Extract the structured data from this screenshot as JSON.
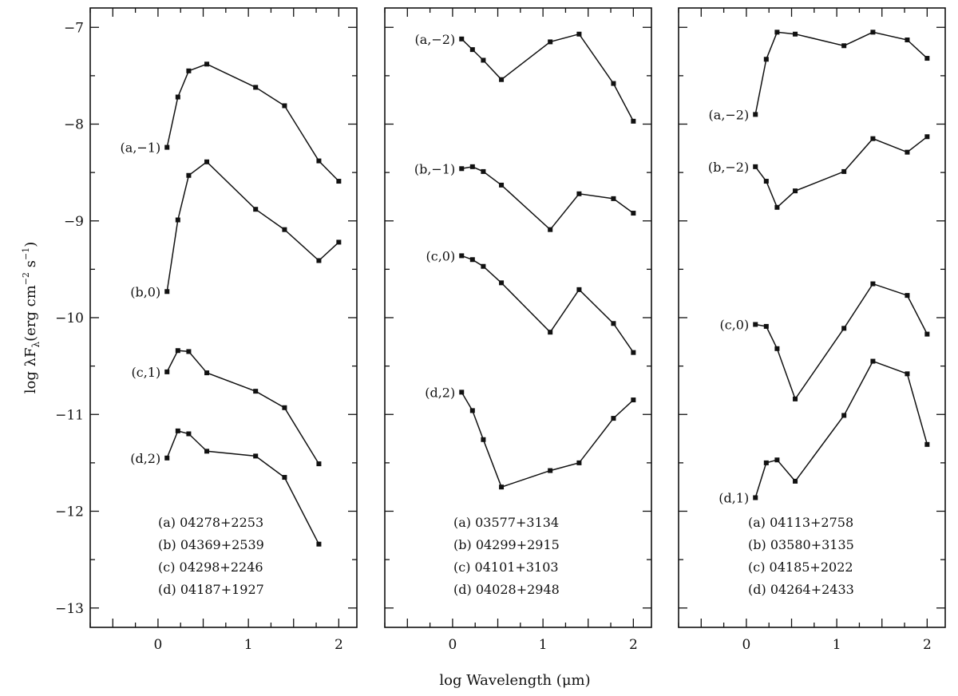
{
  "figure": {
    "ylabel": "log λF",
    "ylabel_sub": "λ",
    "ylabel_units": "(erg cm",
    "ylabel_exp1": "−2",
    "ylabel_s": " s",
    "ylabel_exp2": "−1",
    "ylabel_close": ")",
    "xlabel": "log Wavelength (μm)"
  },
  "chart_data": [
    {
      "type": "line",
      "xlim": [
        -0.75,
        2.2
      ],
      "ylim": [
        -13.2,
        -6.8
      ],
      "x_ticks": [
        0,
        1,
        2
      ],
      "y_ticks": [
        -7,
        -8,
        -9,
        -10,
        -11,
        -12,
        -13
      ],
      "series": [
        {
          "name": "(a,−1)",
          "x": [
            0.1,
            0.22,
            0.34,
            0.54,
            1.08,
            1.4,
            1.78,
            2.0
          ],
          "y": [
            -8.24,
            -7.72,
            -7.45,
            -7.38,
            -7.62,
            -7.81,
            -8.38,
            -8.59
          ]
        },
        {
          "name": "(b,0)",
          "x": [
            0.1,
            0.22,
            0.34,
            0.54,
            1.08,
            1.4,
            1.78,
            2.0
          ],
          "y": [
            -9.73,
            -8.99,
            -8.53,
            -8.39,
            -8.88,
            -9.09,
            -9.41,
            -9.22
          ]
        },
        {
          "name": "(c,1)",
          "x": [
            0.1,
            0.22,
            0.34,
            0.54,
            1.08,
            1.4,
            1.78
          ],
          "y": [
            -10.56,
            -10.34,
            -10.35,
            -10.57,
            -10.76,
            -10.93,
            -11.51
          ]
        },
        {
          "name": "(d,2)",
          "x": [
            0.1,
            0.22,
            0.34,
            0.54,
            1.08,
            1.4,
            1.78
          ],
          "y": [
            -11.45,
            -11.17,
            -11.2,
            -11.38,
            -11.43,
            -11.65,
            -12.34
          ]
        }
      ],
      "legend": [
        "(a)  04278+2253",
        "(b)  04369+2539",
        "(c)  04298+2246",
        "(d)  04187+1927"
      ]
    },
    {
      "type": "line",
      "xlim": [
        -0.75,
        2.2
      ],
      "ylim": [
        -13.2,
        -6.8
      ],
      "x_ticks": [
        0,
        1,
        2
      ],
      "y_ticks": [
        -7,
        -8,
        -9,
        -10,
        -11,
        -12,
        -13
      ],
      "series": [
        {
          "name": "(a,−2)",
          "x": [
            0.1,
            0.22,
            0.34,
            0.54,
            1.08,
            1.4,
            1.78,
            2.0
          ],
          "y": [
            -7.12,
            -7.23,
            -7.34,
            -7.54,
            -7.15,
            -7.07,
            -7.58,
            -7.97
          ]
        },
        {
          "name": "(b,−1)",
          "x": [
            0.1,
            0.22,
            0.34,
            0.54,
            1.08,
            1.4,
            1.78,
            2.0
          ],
          "y": [
            -8.46,
            -8.44,
            -8.49,
            -8.63,
            -9.09,
            -8.72,
            -8.77,
            -8.92
          ]
        },
        {
          "name": "(c,0)",
          "x": [
            0.1,
            0.22,
            0.34,
            0.54,
            1.08,
            1.4,
            1.78,
            2.0
          ],
          "y": [
            -9.36,
            -9.4,
            -9.47,
            -9.64,
            -10.15,
            -9.71,
            -10.06,
            -10.36
          ]
        },
        {
          "name": "(d,2)",
          "x": [
            0.1,
            0.22,
            0.34,
            0.54,
            1.08,
            1.4,
            1.78,
            2.0
          ],
          "y": [
            -10.77,
            -10.96,
            -11.26,
            -11.75,
            -11.58,
            -11.5,
            -11.04,
            -10.85
          ]
        }
      ],
      "legend": [
        "(a)  03577+3134",
        "(b)  04299+2915",
        "(c)  04101+3103",
        "(d)  04028+2948"
      ]
    },
    {
      "type": "line",
      "xlim": [
        -0.75,
        2.2
      ],
      "ylim": [
        -13.2,
        -6.8
      ],
      "x_ticks": [
        0,
        1,
        2
      ],
      "y_ticks": [
        -7,
        -8,
        -9,
        -10,
        -11,
        -12,
        -13
      ],
      "series": [
        {
          "name": "(a,−2)",
          "x": [
            0.1,
            0.22,
            0.34,
            0.54,
            1.08,
            1.4,
            1.78,
            2.0
          ],
          "y": [
            -7.9,
            -7.33,
            -7.05,
            -7.07,
            -7.19,
            -7.05,
            -7.13,
            -7.32
          ]
        },
        {
          "name": "(b,−2)",
          "x": [
            0.1,
            0.22,
            0.34,
            0.54,
            1.08,
            1.4,
            1.78,
            2.0
          ],
          "y": [
            -8.44,
            -8.59,
            -8.86,
            -8.69,
            -8.49,
            -8.15,
            -8.29,
            -8.13
          ]
        },
        {
          "name": "(c,0)",
          "x": [
            0.1,
            0.22,
            0.34,
            0.54,
            1.08,
            1.4,
            1.78,
            2.0
          ],
          "y": [
            -10.07,
            -10.09,
            -10.32,
            -10.84,
            -10.11,
            -9.65,
            -9.77,
            -10.17
          ]
        },
        {
          "name": "(d,1)",
          "x": [
            0.1,
            0.22,
            0.34,
            0.54,
            1.08,
            1.4,
            1.78,
            2.0
          ],
          "y": [
            -11.86,
            -11.5,
            -11.47,
            -11.69,
            -11.01,
            -10.45,
            -10.58,
            -11.31
          ]
        }
      ],
      "legend": [
        "(a)  04113+2758",
        "(b)  03580+3135",
        "(c)  04185+2022",
        "(d)  04264+2433"
      ]
    }
  ]
}
